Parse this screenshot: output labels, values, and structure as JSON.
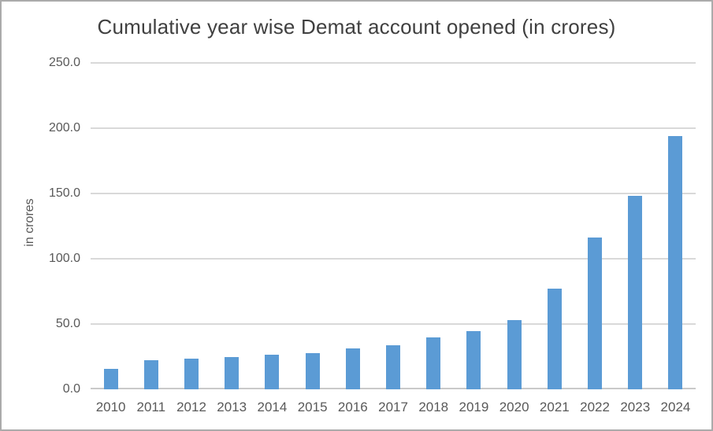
{
  "chart_data": {
    "type": "bar",
    "title": "Cumulative year wise Demat account opened (in crores)",
    "ylabel": "in crores",
    "xlabel": "",
    "categories": [
      "2010",
      "2011",
      "2012",
      "2013",
      "2014",
      "2015",
      "2016",
      "2017",
      "2018",
      "2019",
      "2020",
      "2021",
      "2022",
      "2023",
      "2024"
    ],
    "values": [
      15.5,
      22.5,
      23.5,
      25,
      26.5,
      28,
      31.5,
      34,
      39.5,
      44.5,
      53,
      77,
      116,
      148,
      194
    ],
    "ylim": [
      0,
      250
    ],
    "ytick_interval": 50,
    "yticks": [
      "250.0",
      "200.0",
      "150.0",
      "100.0",
      "50.0",
      "0.0"
    ],
    "grid": "horizontal",
    "legend": "none",
    "colors": {
      "bar": "#5b9bd5",
      "gridline": "#d9d9d9",
      "axis_line": "#c9c9c9",
      "title_text": "#404040",
      "tick_text": "#595959",
      "border": "#ababab",
      "background": "#ffffff"
    }
  }
}
